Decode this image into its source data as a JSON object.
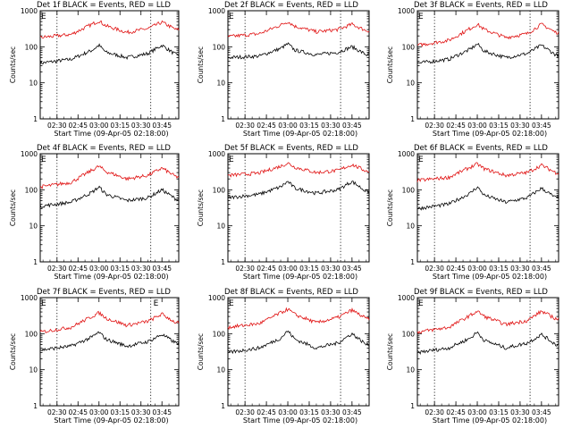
{
  "figure": {
    "background": "#ffffff",
    "events_color": "#000000",
    "lld_color": "#e01010"
  },
  "chart_data": [
    {
      "type": "line",
      "title": "Det 1f BLACK = Events, RED = LLD",
      "xlabel": "Start Time (09-Apr-05 02:18:00)",
      "ylabel": "Counts/sec",
      "yscale": "log",
      "ylim": [
        1,
        1000
      ],
      "x_ticks": [
        "02:30",
        "02:45",
        "03:00",
        "03:15",
        "03:30",
        "03:45"
      ],
      "y_ticks": [
        "1",
        "10",
        "100",
        "1000"
      ],
      "markers": [
        "E"
      ],
      "dotted_lines_at": [
        "02:30",
        "03:37"
      ],
      "series": [
        {
          "name": "Events",
          "anchors": {
            "x": [
              "02:18",
              "02:40",
              "02:55",
              "03:00",
              "03:05",
              "03:20",
              "03:35",
              "03:45",
              "03:55"
            ],
            "y": [
              35,
              45,
              80,
              110,
              70,
              50,
              65,
              110,
              60
            ]
          }
        },
        {
          "name": "LLD",
          "anchors": {
            "x": [
              "02:18",
              "02:40",
              "02:55",
              "03:00",
              "03:05",
              "03:20",
              "03:35",
              "03:45",
              "03:55"
            ],
            "y": [
              180,
              220,
              420,
              520,
              380,
              250,
              320,
              480,
              300
            ]
          }
        }
      ]
    },
    {
      "type": "line",
      "title": "Det 2f BLACK = Events, RED = LLD",
      "xlabel": "Start Time (09-Apr-05 02:18:00)",
      "ylabel": "Counts/sec",
      "yscale": "log",
      "ylim": [
        1,
        1000
      ],
      "x_ticks": [
        "02:30",
        "02:45",
        "03:00",
        "03:15",
        "03:30",
        "03:45"
      ],
      "y_ticks": [
        "1",
        "10",
        "100",
        "1000"
      ],
      "markers": [
        "E"
      ],
      "dotted_lines_at": [
        "02:30",
        "03:37"
      ],
      "series": [
        {
          "name": "Events",
          "anchors": {
            "x": [
              "02:18",
              "02:40",
              "02:55",
              "03:00",
              "03:05",
              "03:20",
              "03:35",
              "03:45",
              "03:55"
            ],
            "y": [
              50,
              55,
              90,
              120,
              80,
              60,
              70,
              100,
              60
            ]
          }
        },
        {
          "name": "LLD",
          "anchors": {
            "x": [
              "02:18",
              "02:40",
              "02:55",
              "03:00",
              "03:05",
              "03:20",
              "03:35",
              "03:45",
              "03:55"
            ],
            "y": [
              190,
              230,
              400,
              500,
              370,
              260,
              300,
              420,
              280
            ]
          }
        }
      ]
    },
    {
      "type": "line",
      "title": "Det 3f BLACK = Events, RED = LLD",
      "xlabel": "Start Time (09-Apr-05 02:18:00)",
      "ylabel": "Counts/sec",
      "yscale": "log",
      "ylim": [
        1,
        1000
      ],
      "x_ticks": [
        "02:30",
        "02:45",
        "03:00",
        "03:15",
        "03:30",
        "03:45"
      ],
      "y_ticks": [
        "1",
        "10",
        "100",
        "1000"
      ],
      "markers": [
        "E"
      ],
      "dotted_lines_at": [
        "02:30",
        "03:37"
      ],
      "series": [
        {
          "name": "Events",
          "anchors": {
            "x": [
              "02:18",
              "02:40",
              "02:55",
              "03:00",
              "03:05",
              "03:20",
              "03:35",
              "03:45",
              "03:55"
            ],
            "y": [
              35,
              45,
              85,
              120,
              75,
              50,
              65,
              110,
              60
            ]
          }
        },
        {
          "name": "LLD",
          "anchors": {
            "x": [
              "02:18",
              "02:40",
              "02:55",
              "03:00",
              "03:05",
              "03:20",
              "03:35",
              "03:45",
              "03:55"
            ],
            "y": [
              110,
              150,
              320,
              420,
              300,
              180,
              230,
              420,
              250
            ]
          }
        }
      ]
    },
    {
      "type": "line",
      "title": "Det 4f BLACK = Events, RED = LLD",
      "xlabel": "Start Time (09-Apr-05 02:18:00)",
      "ylabel": "Counts/sec",
      "yscale": "log",
      "ylim": [
        1,
        1000
      ],
      "x_ticks": [
        "02:30",
        "02:45",
        "03:00",
        "03:15",
        "03:30",
        "03:45"
      ],
      "y_ticks": [
        "1",
        "10",
        "100",
        "1000"
      ],
      "markers": [
        "E"
      ],
      "dotted_lines_at": [
        "02:30",
        "03:37"
      ],
      "series": [
        {
          "name": "Events",
          "anchors": {
            "x": [
              "02:18",
              "02:40",
              "02:55",
              "03:00",
              "03:05",
              "03:20",
              "03:35",
              "03:45",
              "03:55"
            ],
            "y": [
              35,
              45,
              85,
              120,
              75,
              50,
              60,
              100,
              55
            ]
          }
        },
        {
          "name": "LLD",
          "anchors": {
            "x": [
              "02:18",
              "02:40",
              "02:55",
              "03:00",
              "03:05",
              "03:20",
              "03:35",
              "03:45",
              "03:55"
            ],
            "y": [
              120,
              160,
              350,
              450,
              320,
              200,
              250,
              400,
              230
            ]
          }
        }
      ]
    },
    {
      "type": "line",
      "title": "Det 5f BLACK = Events, RED = LLD",
      "xlabel": "Start Time (09-Apr-05 02:18:00)",
      "ylabel": "Counts/sec",
      "yscale": "log",
      "ylim": [
        1,
        1000
      ],
      "x_ticks": [
        "02:30",
        "02:45",
        "03:00",
        "03:15",
        "03:30",
        "03:45"
      ],
      "y_ticks": [
        "1",
        "10",
        "100",
        "1000"
      ],
      "markers": [
        "E"
      ],
      "dotted_lines_at": [
        "02:30",
        "03:37"
      ],
      "series": [
        {
          "name": "Events",
          "anchors": {
            "x": [
              "02:18",
              "02:40",
              "02:55",
              "03:00",
              "03:05",
              "03:20",
              "03:35",
              "03:45",
              "03:55"
            ],
            "y": [
              60,
              75,
              120,
              170,
              110,
              80,
              100,
              170,
              90
            ]
          }
        },
        {
          "name": "LLD",
          "anchors": {
            "x": [
              "02:18",
              "02:40",
              "02:55",
              "03:00",
              "03:05",
              "03:20",
              "03:35",
              "03:45",
              "03:55"
            ],
            "y": [
              250,
              290,
              450,
              550,
              420,
              300,
              340,
              500,
              330
            ]
          }
        }
      ]
    },
    {
      "type": "line",
      "title": "Det 6f BLACK = Events, RED = LLD",
      "xlabel": "Start Time (09-Apr-05 02:18:00)",
      "ylabel": "Counts/sec",
      "yscale": "log",
      "ylim": [
        1,
        1000
      ],
      "x_ticks": [
        "02:30",
        "02:45",
        "03:00",
        "03:15",
        "03:30",
        "03:45"
      ],
      "y_ticks": [
        "1",
        "10",
        "100",
        "1000"
      ],
      "markers": [
        "E"
      ],
      "dotted_lines_at": [
        "02:30",
        "03:37"
      ],
      "series": [
        {
          "name": "Events",
          "anchors": {
            "x": [
              "02:18",
              "02:40",
              "02:55",
              "03:00",
              "03:05",
              "03:20",
              "03:35",
              "03:45",
              "03:55"
            ],
            "y": [
              30,
              40,
              80,
              120,
              70,
              45,
              60,
              110,
              60
            ]
          }
        },
        {
          "name": "LLD",
          "anchors": {
            "x": [
              "02:18",
              "02:40",
              "02:55",
              "03:00",
              "03:05",
              "03:20",
              "03:35",
              "03:45",
              "03:55"
            ],
            "y": [
              180,
              220,
              420,
              520,
              380,
              250,
              300,
              480,
              300
            ]
          }
        }
      ]
    },
    {
      "type": "line",
      "title": "Det 7f BLACK = Events, RED = LLD",
      "xlabel": "Start Time (09-Apr-05 02:18:00)",
      "ylabel": "Counts/sec",
      "yscale": "log",
      "ylim": [
        1,
        1000
      ],
      "x_ticks": [
        "02:30",
        "02:45",
        "03:00",
        "03:15",
        "03:30",
        "03:45"
      ],
      "y_ticks": [
        "1",
        "10",
        "100",
        "1000"
      ],
      "markers": [
        "E",
        "E"
      ],
      "dotted_lines_at": [
        "02:30",
        "03:37"
      ],
      "series": [
        {
          "name": "Events",
          "anchors": {
            "x": [
              "02:18",
              "02:40",
              "02:55",
              "03:00",
              "03:05",
              "03:20",
              "03:35",
              "03:45",
              "03:55"
            ],
            "y": [
              35,
              45,
              80,
              110,
              70,
              45,
              60,
              95,
              55
            ]
          }
        },
        {
          "name": "LLD",
          "anchors": {
            "x": [
              "02:18",
              "02:40",
              "02:55",
              "03:00",
              "03:05",
              "03:20",
              "03:35",
              "03:45",
              "03:55"
            ],
            "y": [
              110,
              150,
              300,
              380,
              270,
              170,
              220,
              350,
              200
            ]
          }
        }
      ]
    },
    {
      "type": "line",
      "title": "Det 8f BLACK = Events, RED = LLD",
      "xlabel": "Start Time (09-Apr-05 02:18:00)",
      "ylabel": "Counts/sec",
      "yscale": "log",
      "ylim": [
        1,
        1000
      ],
      "x_ticks": [
        "02:30",
        "02:45",
        "03:00",
        "03:15",
        "03:30",
        "03:45"
      ],
      "y_ticks": [
        "1",
        "10",
        "100",
        "1000"
      ],
      "markers": [
        "E"
      ],
      "dotted_lines_at": [
        "02:30",
        "03:37"
      ],
      "series": [
        {
          "name": "Events",
          "anchors": {
            "x": [
              "02:18",
              "02:40",
              "02:55",
              "03:00",
              "03:05",
              "03:20",
              "03:35",
              "03:45",
              "03:55"
            ],
            "y": [
              30,
              40,
              75,
              120,
              70,
              40,
              55,
              100,
              50
            ]
          }
        },
        {
          "name": "LLD",
          "anchors": {
            "x": [
              "02:18",
              "02:40",
              "02:55",
              "03:00",
              "03:05",
              "03:20",
              "03:35",
              "03:45",
              "03:55"
            ],
            "y": [
              150,
              190,
              380,
              480,
              340,
              200,
              280,
              450,
              260
            ]
          }
        }
      ]
    },
    {
      "type": "line",
      "title": "Det 9f BLACK = Events, RED = LLD",
      "xlabel": "Start Time (09-Apr-05 02:18:00)",
      "ylabel": "Counts/sec",
      "yscale": "log",
      "ylim": [
        1,
        1000
      ],
      "x_ticks": [
        "02:30",
        "02:45",
        "03:00",
        "03:15",
        "03:30",
        "03:45"
      ],
      "y_ticks": [
        "1",
        "10",
        "100",
        "1000"
      ],
      "markers": [
        "E"
      ],
      "dotted_lines_at": [
        "02:30",
        "03:37"
      ],
      "series": [
        {
          "name": "Events",
          "anchors": {
            "x": [
              "02:18",
              "02:40",
              "02:55",
              "03:00",
              "03:05",
              "03:20",
              "03:35",
              "03:45",
              "03:55"
            ],
            "y": [
              30,
              40,
              75,
              110,
              65,
              40,
              55,
              95,
              50
            ]
          }
        },
        {
          "name": "LLD",
          "anchors": {
            "x": [
              "02:18",
              "02:40",
              "02:55",
              "03:00",
              "03:05",
              "03:20",
              "03:35",
              "03:45",
              "03:55"
            ],
            "y": [
              110,
              150,
              320,
              420,
              300,
              180,
              230,
              420,
              260
            ]
          }
        }
      ]
    }
  ]
}
